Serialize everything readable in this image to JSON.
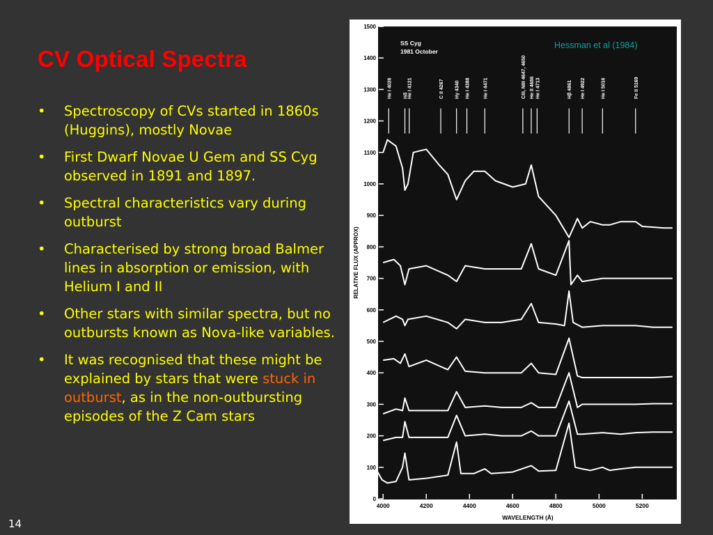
{
  "slide": {
    "title": "CV Optical Spectra",
    "page_number": "14",
    "credit": "Hessman et al (1984)",
    "bullets": [
      {
        "text": "Spectroscopy of CVs started in 1860s (Huggins), mostly Novae"
      },
      {
        "text": "First Dwarf Novae U Gem and SS Cyg observed in 1891 and 1897."
      },
      {
        "text": "Spectral characteristics vary during outburst"
      },
      {
        "text": "Characterised by strong broad Balmer lines in absorption or emission, with Helium I and II"
      },
      {
        "text": "Other stars with similar spectra, but no outbursts known as Nova-like variables."
      },
      {
        "pre": "It was recognised that these might be explained by stars that were ",
        "highlight": "stuck in outburst",
        "post": ", as in the non-outbursting episodes of the Z Cam stars"
      }
    ],
    "bullet_char": "•",
    "colors": {
      "background": "#333333",
      "title": "#ff0000",
      "text": "#ffff00",
      "highlight": "#ff6600",
      "credit": "#0aa3a3",
      "page_number": "#ffffff"
    }
  },
  "chart_data": {
    "type": "line",
    "figure_labels": [
      "SS Cyg",
      "1981 October"
    ],
    "xlabel": "WAVELENGTH (Å)",
    "ylabel": "RELATIVE FLUX (APPROX)",
    "xlim": [
      3980,
      5360
    ],
    "ylim": [
      0,
      1500
    ],
    "xticks": [
      4000,
      4200,
      4400,
      4600,
      4800,
      5000,
      5200
    ],
    "yticks": [
      0,
      100,
      200,
      300,
      400,
      500,
      600,
      700,
      800,
      900,
      1000,
      1100,
      1200,
      1300,
      1400,
      1500
    ],
    "ytick_labels": [
      "0",
      "100",
      "200",
      "300",
      "400",
      "500",
      "600",
      "700",
      "800",
      "900",
      "1000",
      "1100",
      "1200",
      "1300",
      "1400",
      "1500"
    ],
    "line_ids": [
      {
        "x": 4026,
        "label": "He I 4026"
      },
      {
        "x": 4101,
        "label": "Hδ"
      },
      {
        "x": 4121,
        "label": "He I 4121"
      },
      {
        "x": 4267,
        "label": "C II 4267"
      },
      {
        "x": 4340,
        "label": "Hγ 4340"
      },
      {
        "x": 4388,
        "label": "He I 4388"
      },
      {
        "x": 4471,
        "label": "He I 4471"
      },
      {
        "x": 4647,
        "label": "CIII, NIII 4647, 4650"
      },
      {
        "x": 4686,
        "label": "He II 4686"
      },
      {
        "x": 4713,
        "label": "He I 4713"
      },
      {
        "x": 4861,
        "label": "Hβ 4861"
      },
      {
        "x": 4922,
        "label": "He I 4922"
      },
      {
        "x": 5016,
        "label": "He I 5016"
      },
      {
        "x": 5169,
        "label": "Fe II 5169"
      }
    ],
    "series": [
      {
        "x": [
          4000,
          4020,
          4060,
          4090,
          4101,
          4115,
          4140,
          4200,
          4260,
          4300,
          4340,
          4380,
          4420,
          4471,
          4520,
          4600,
          4660,
          4686,
          4720,
          4800,
          4861,
          4900,
          4922,
          4960,
          5016,
          5050,
          5100,
          5169,
          5200,
          5300,
          5340
        ],
        "y": [
          1100,
          1140,
          1120,
          1050,
          980,
          1000,
          1100,
          1110,
          1060,
          1030,
          950,
          1010,
          1040,
          1040,
          1010,
          990,
          1000,
          1060,
          960,
          900,
          830,
          890,
          860,
          880,
          870,
          870,
          880,
          880,
          865,
          860,
          860
        ]
      },
      {
        "x": [
          4000,
          4050,
          4080,
          4101,
          4120,
          4200,
          4300,
          4340,
          4380,
          4471,
          4550,
          4640,
          4686,
          4720,
          4800,
          4861,
          4870,
          4900,
          4922,
          5016,
          5100,
          5169,
          5250,
          5340
        ],
        "y": [
          750,
          760,
          740,
          680,
          730,
          740,
          710,
          690,
          740,
          730,
          730,
          730,
          810,
          730,
          710,
          820,
          680,
          710,
          690,
          700,
          700,
          700,
          700,
          700
        ]
      },
      {
        "x": [
          4000,
          4060,
          4090,
          4101,
          4115,
          4200,
          4300,
          4340,
          4380,
          4471,
          4550,
          4640,
          4686,
          4720,
          4800,
          4840,
          4861,
          4880,
          4922,
          5016,
          5100,
          5169,
          5250,
          5340
        ],
        "y": [
          560,
          580,
          570,
          550,
          570,
          580,
          560,
          540,
          570,
          560,
          560,
          570,
          620,
          560,
          555,
          550,
          660,
          560,
          545,
          550,
          550,
          550,
          545,
          545
        ]
      },
      {
        "x": [
          4000,
          4050,
          4080,
          4101,
          4120,
          4200,
          4300,
          4340,
          4380,
          4471,
          4550,
          4640,
          4686,
          4720,
          4800,
          4861,
          4900,
          4922,
          5016,
          5100,
          5169,
          5250,
          5340
        ],
        "y": [
          440,
          445,
          430,
          460,
          420,
          440,
          410,
          450,
          405,
          400,
          400,
          400,
          430,
          400,
          395,
          510,
          390,
          385,
          385,
          385,
          385,
          385,
          388
        ]
      },
      {
        "x": [
          4000,
          4060,
          4090,
          4101,
          4120,
          4200,
          4300,
          4340,
          4380,
          4471,
          4550,
          4640,
          4686,
          4720,
          4800,
          4861,
          4900,
          4922,
          5016,
          5100,
          5169,
          5250,
          5340
        ],
        "y": [
          270,
          285,
          280,
          320,
          280,
          280,
          280,
          340,
          290,
          295,
          290,
          290,
          305,
          290,
          290,
          400,
          290,
          300,
          300,
          300,
          300,
          302,
          302
        ]
      },
      {
        "x": [
          4000,
          4060,
          4090,
          4101,
          4120,
          4200,
          4300,
          4340,
          4380,
          4471,
          4550,
          4640,
          4686,
          4720,
          4800,
          4861,
          4900,
          4922,
          5016,
          5100,
          5169,
          5250,
          5340
        ],
        "y": [
          185,
          195,
          195,
          245,
          195,
          195,
          195,
          265,
          200,
          205,
          200,
          200,
          215,
          200,
          200,
          310,
          205,
          205,
          210,
          205,
          210,
          212,
          212
        ]
      },
      {
        "x": [
          3975,
          3995,
          4020,
          4060,
          4090,
          4101,
          4120,
          4200,
          4300,
          4340,
          4360,
          4420,
          4471,
          4500,
          4600,
          4686,
          4720,
          4800,
          4861,
          4890,
          4922,
          4960,
          5016,
          5050,
          5100,
          5169,
          5250,
          5340
        ],
        "y": [
          85,
          60,
          50,
          55,
          100,
          145,
          60,
          65,
          75,
          180,
          80,
          80,
          95,
          80,
          85,
          105,
          88,
          90,
          240,
          100,
          95,
          90,
          100,
          90,
          95,
          100,
          100,
          100
        ]
      }
    ]
  }
}
